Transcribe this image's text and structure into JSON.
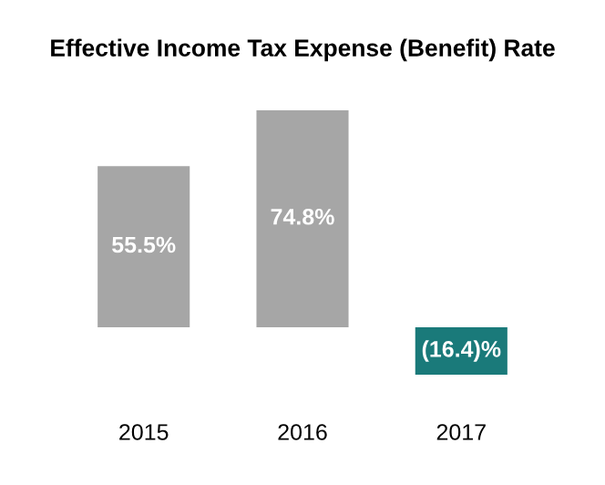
{
  "chart_data": {
    "type": "bar",
    "title": "Effective Income Tax Expense (Benefit) Rate",
    "categories": [
      "2015",
      "2016",
      "2017"
    ],
    "values": [
      55.5,
      74.8,
      -16.4
    ],
    "colors": [
      "#a6a6a6",
      "#a6a6a6",
      "#1a7a7a"
    ],
    "value_labels": [
      "55.5%",
      "74.8%",
      "(16.4)%"
    ],
    "grid": false,
    "legend": false
  }
}
